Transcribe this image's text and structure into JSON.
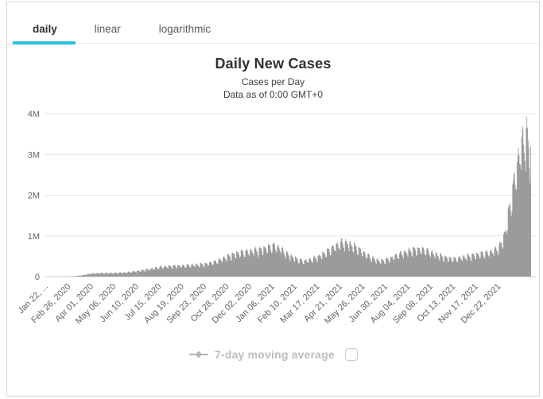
{
  "tabs": {
    "items": [
      {
        "label": "daily",
        "active": true
      },
      {
        "label": "linear",
        "active": false
      },
      {
        "label": "logarithmic",
        "active": false
      }
    ]
  },
  "header": {
    "title": "Daily New Cases",
    "subtitle": "Cases per Day",
    "data_note": "Data as of 0:00 GMT+0"
  },
  "legend": {
    "label": "7-day moving average",
    "checkbox_checked": false
  },
  "colors": {
    "accent": "#29c0e0",
    "bars": "#9b9b9b",
    "grid": "#e6e6e6",
    "axis_line": "#d2d2d2",
    "tick_text": "#5f646b",
    "title_text": "#313131",
    "legend_text": "#bdbdbd",
    "legend_marker": "#b5b5b5",
    "border": "#d7d7d7",
    "hairline": "#ededed"
  },
  "chart_data": {
    "type": "bar",
    "title": "Daily New Cases",
    "subtitle": "Cases per Day",
    "note": "Data as of 0:00 GMT+0",
    "xlabel": "",
    "ylabel": "",
    "ylim_millions": [
      0,
      4
    ],
    "grid": "horizontal",
    "legend_position": "bottom",
    "legend_items": [
      "7-day moving average"
    ],
    "total_days": 751,
    "yticks": [
      {
        "value_millions": 0,
        "label": "0"
      },
      {
        "value_millions": 1,
        "label": "1M"
      },
      {
        "value_millions": 2,
        "label": "2M"
      },
      {
        "value_millions": 3,
        "label": "3M"
      },
      {
        "value_millions": 4,
        "label": "4M"
      }
    ],
    "xticks": [
      {
        "day": 0,
        "label": "Jan 22, ..."
      },
      {
        "day": 35,
        "label": "Feb 26, 2020"
      },
      {
        "day": 70,
        "label": "Apr 01, 2020"
      },
      {
        "day": 105,
        "label": "May 06, 2020"
      },
      {
        "day": 140,
        "label": "Jun 10, 2020"
      },
      {
        "day": 175,
        "label": "Jul 15, 2020"
      },
      {
        "day": 210,
        "label": "Aug 19, 2020"
      },
      {
        "day": 245,
        "label": "Sep 23, 2020"
      },
      {
        "day": 280,
        "label": "Oct 28, 2020"
      },
      {
        "day": 315,
        "label": "Dec 02, 2020"
      },
      {
        "day": 350,
        "label": "Jan 06, 2021"
      },
      {
        "day": 385,
        "label": "Feb 10, 2021"
      },
      {
        "day": 420,
        "label": "Mar 17, 2021"
      },
      {
        "day": 455,
        "label": "Apr 21, 2021"
      },
      {
        "day": 490,
        "label": "May 26, 2021"
      },
      {
        "day": 525,
        "label": "Jun 30, 2021"
      },
      {
        "day": 560,
        "label": "Aug 04, 2021"
      },
      {
        "day": 595,
        "label": "Sep 08, 2021"
      },
      {
        "day": 630,
        "label": "Oct 13, 2021"
      },
      {
        "day": 665,
        "label": "Nov 17, 2021"
      },
      {
        "day": 700,
        "label": "Dec 22, 2021"
      }
    ],
    "weekly_pattern": [
      0.1,
      0.13,
      0.1,
      0.04,
      -0.05,
      -0.15,
      -0.19
    ],
    "series": [
      {
        "name": "Daily New Cases",
        "color": "#9b9b9b",
        "unit": "cases per day",
        "trend_points_millions": [
          [
            0,
            0.001
          ],
          [
            30,
            0.002
          ],
          [
            45,
            0.012
          ],
          [
            55,
            0.03
          ],
          [
            63,
            0.055
          ],
          [
            70,
            0.073
          ],
          [
            80,
            0.082
          ],
          [
            95,
            0.084
          ],
          [
            105,
            0.088
          ],
          [
            120,
            0.095
          ],
          [
            140,
            0.13
          ],
          [
            158,
            0.175
          ],
          [
            175,
            0.225
          ],
          [
            192,
            0.25
          ],
          [
            210,
            0.26
          ],
          [
            228,
            0.275
          ],
          [
            245,
            0.3
          ],
          [
            262,
            0.36
          ],
          [
            280,
            0.48
          ],
          [
            295,
            0.56
          ],
          [
            315,
            0.61
          ],
          [
            330,
            0.64
          ],
          [
            345,
            0.71
          ],
          [
            352,
            0.74
          ],
          [
            362,
            0.67
          ],
          [
            375,
            0.51
          ],
          [
            390,
            0.4
          ],
          [
            398,
            0.37
          ],
          [
            410,
            0.41
          ],
          [
            420,
            0.47
          ],
          [
            435,
            0.61
          ],
          [
            448,
            0.74
          ],
          [
            458,
            0.82
          ],
          [
            468,
            0.79
          ],
          [
            482,
            0.67
          ],
          [
            495,
            0.52
          ],
          [
            508,
            0.41
          ],
          [
            518,
            0.375
          ],
          [
            530,
            0.42
          ],
          [
            545,
            0.53
          ],
          [
            560,
            0.61
          ],
          [
            572,
            0.65
          ],
          [
            582,
            0.65
          ],
          [
            595,
            0.58
          ],
          [
            608,
            0.5
          ],
          [
            620,
            0.445
          ],
          [
            632,
            0.42
          ],
          [
            645,
            0.465
          ],
          [
            658,
            0.5
          ],
          [
            672,
            0.545
          ],
          [
            684,
            0.575
          ],
          [
            693,
            0.625
          ],
          [
            700,
            0.7
          ],
          [
            706,
            0.88
          ],
          [
            711,
            1.15
          ],
          [
            715,
            1.55
          ],
          [
            719,
            1.85
          ],
          [
            722,
            2.15
          ],
          [
            726,
            2.5
          ],
          [
            729,
            2.75
          ],
          [
            733,
            3.05
          ],
          [
            737,
            3.25
          ],
          [
            742,
            3.35
          ],
          [
            746,
            3.2
          ],
          [
            750,
            2.85
          ]
        ]
      }
    ]
  }
}
